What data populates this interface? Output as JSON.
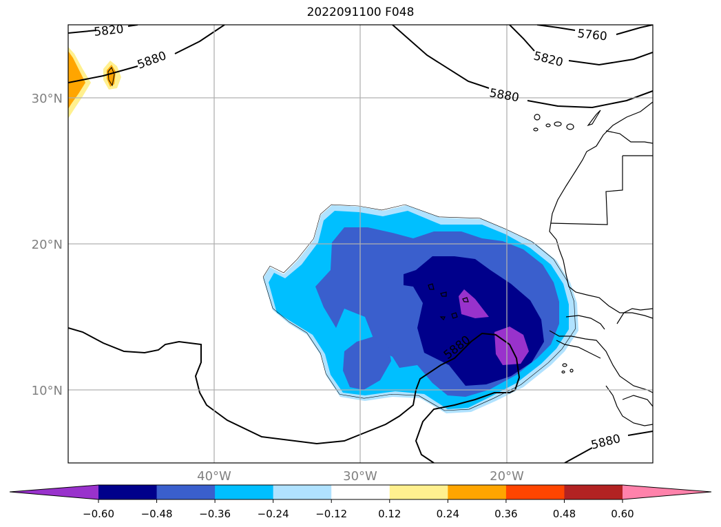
{
  "title": "2022091100 F048",
  "map": {
    "lon_labels": [
      "40°W",
      "30°W",
      "20°W"
    ],
    "lat_labels": [
      "30°N",
      "20°N",
      "10°N"
    ],
    "contour_labels": [
      "5820",
      "5880",
      "5760",
      "5820",
      "5880",
      "5880",
      "5880"
    ]
  },
  "colorbar": {
    "ticks": [
      "−0.60",
      "−0.48",
      "−0.36",
      "−0.24",
      "−0.12",
      "0.12",
      "0.24",
      "0.36",
      "0.48",
      "0.60"
    ],
    "colors": [
      "#9932cc",
      "#00008b",
      "#3a5fcd",
      "#00bfff",
      "#b0e2ff",
      "#ffffff",
      "#fff08f",
      "#ffa500",
      "#ff4500",
      "#b22222",
      "#ff82ab"
    ]
  }
}
